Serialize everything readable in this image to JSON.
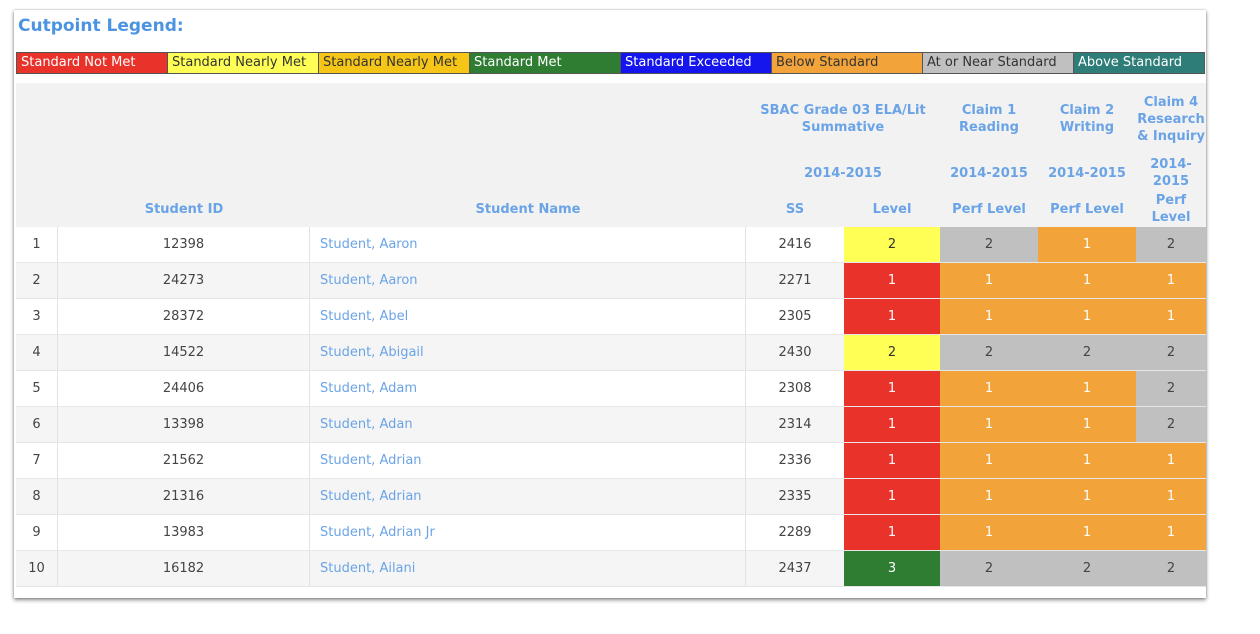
{
  "legend": {
    "title": "Cutpoint Legend:",
    "items": [
      {
        "label": "Standard Not Met",
        "bg": "#e8322a",
        "fg": "#ffffff"
      },
      {
        "label": "Standard Nearly Met",
        "bg": "#ffff55",
        "fg": "#333333"
      },
      {
        "label": "Standard Nearly Met",
        "bg": "#f5c518",
        "fg": "#333333"
      },
      {
        "label": "Standard Met",
        "bg": "#2e7d32",
        "fg": "#ffffff"
      },
      {
        "label": "Standard Exceeded",
        "bg": "#1515ee",
        "fg": "#ffffff"
      },
      {
        "label": "Below Standard",
        "bg": "#f2a33a",
        "fg": "#333333"
      },
      {
        "label": "At or Near Standard",
        "bg": "#c0c0c0",
        "fg": "#333333"
      },
      {
        "label": "Above Standard",
        "bg": "#2e7d78",
        "fg": "#ffffff"
      }
    ]
  },
  "header": {
    "assessment": "SBAC Grade 03 ELA/Lit Summative",
    "claim1": "Claim 1 Reading",
    "claim2": "Claim 2 Writing",
    "claim4": "Claim 4 Research & Inquiry",
    "year_assessment": "2014-2015",
    "year_claim1": "2014-2015",
    "year_claim2": "2014-2015",
    "year_claim4": "2014-2015",
    "col_student_id": "Student ID",
    "col_student_name": "Student Name",
    "col_ss": "SS",
    "col_level": "Level",
    "col_c1": "Perf Level",
    "col_c2": "Perf Level",
    "col_c4": "Perf Level"
  },
  "colors": {
    "level_1": "#e8322a",
    "level_2": "#ffff55",
    "level_3": "#2e7d32",
    "claim_1": "#f2a33a",
    "claim_2": "#c0c0c0",
    "claim_3": "#2e7d78"
  },
  "rows": [
    {
      "idx": "1",
      "id": "12398",
      "name": "Student, Aaron",
      "ss": "2416",
      "level": "2",
      "c1": "2",
      "c2": "1",
      "c4": "2"
    },
    {
      "idx": "2",
      "id": "24273",
      "name": "Student, Aaron",
      "ss": "2271",
      "level": "1",
      "c1": "1",
      "c2": "1",
      "c4": "1"
    },
    {
      "idx": "3",
      "id": "28372",
      "name": "Student, Abel",
      "ss": "2305",
      "level": "1",
      "c1": "1",
      "c2": "1",
      "c4": "1"
    },
    {
      "idx": "4",
      "id": "14522",
      "name": "Student, Abigail",
      "ss": "2430",
      "level": "2",
      "c1": "2",
      "c2": "2",
      "c4": "2"
    },
    {
      "idx": "5",
      "id": "24406",
      "name": "Student, Adam",
      "ss": "2308",
      "level": "1",
      "c1": "1",
      "c2": "1",
      "c4": "2"
    },
    {
      "idx": "6",
      "id": "13398",
      "name": "Student, Adan",
      "ss": "2314",
      "level": "1",
      "c1": "1",
      "c2": "1",
      "c4": "2"
    },
    {
      "idx": "7",
      "id": "21562",
      "name": "Student, Adrian",
      "ss": "2336",
      "level": "1",
      "c1": "1",
      "c2": "1",
      "c4": "1"
    },
    {
      "idx": "8",
      "id": "21316",
      "name": "Student, Adrian",
      "ss": "2335",
      "level": "1",
      "c1": "1",
      "c2": "1",
      "c4": "1"
    },
    {
      "idx": "9",
      "id": "13983",
      "name": "Student, Adrian Jr",
      "ss": "2289",
      "level": "1",
      "c1": "1",
      "c2": "1",
      "c4": "1"
    },
    {
      "idx": "10",
      "id": "16182",
      "name": "Student, Ailani",
      "ss": "2437",
      "level": "3",
      "c1": "2",
      "c2": "2",
      "c4": "2"
    }
  ]
}
